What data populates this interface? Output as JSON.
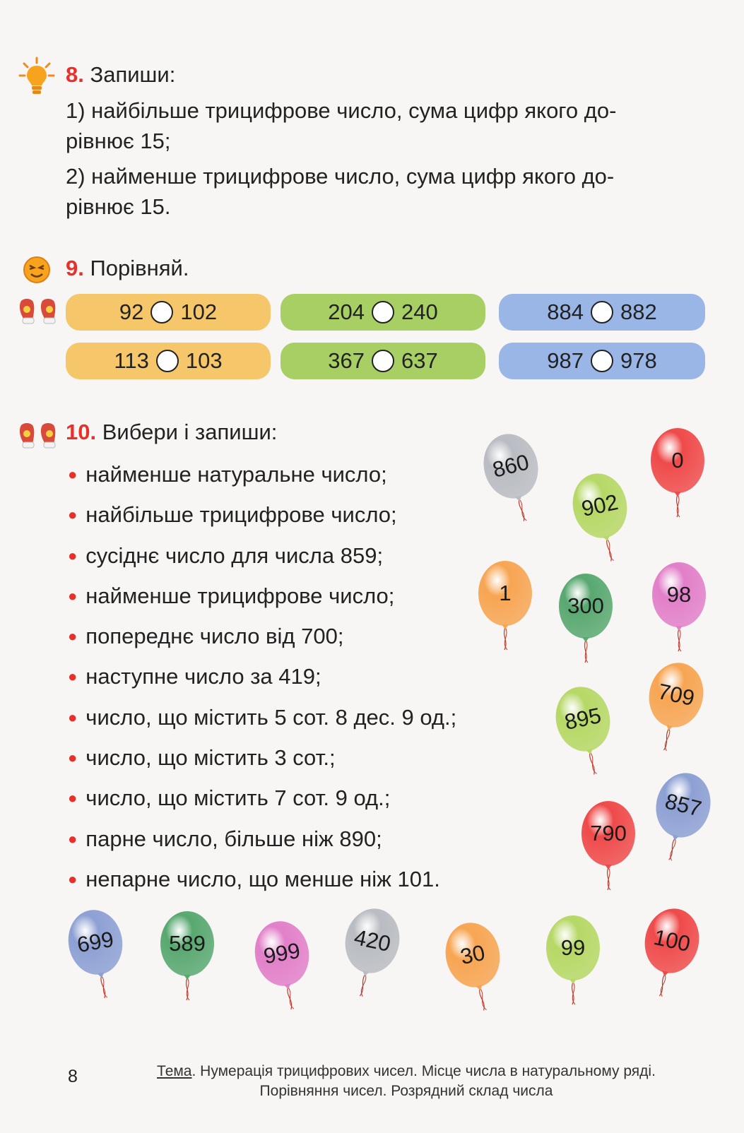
{
  "task8": {
    "number": "8.",
    "title": "Запиши:",
    "item1_line1": "1) найбільше трицифрове число, сума цифр якого до-",
    "item1_line2": "рівнює 15;",
    "item2_line1": "2) найменше трицифрове число, сума цифр якого до-",
    "item2_line2": "рівнює 15."
  },
  "task9": {
    "number": "9.",
    "title": "Порівняй.",
    "pairs": [
      {
        "a": "92",
        "b": "102",
        "color": "#f5c76a"
      },
      {
        "a": "204",
        "b": "240",
        "color": "#a8cf63"
      },
      {
        "a": "884",
        "b": "882",
        "color": "#9ab6e6"
      },
      {
        "a": "113",
        "b": "103",
        "color": "#f5c76a"
      },
      {
        "a": "367",
        "b": "637",
        "color": "#a8cf63"
      },
      {
        "a": "987",
        "b": "978",
        "color": "#9ab6e6"
      }
    ]
  },
  "task10": {
    "number": "10.",
    "title": "Вибери і запиши:",
    "items": [
      "найменше натуральне число;",
      "найбільше трицифрове число;",
      "сусіднє число для числа 859;",
      "найменше трицифрове число;",
      "попереднє число від 700;",
      "наступне число за 419;",
      "число, що містить 5 сот. 8 дес. 9 од.;",
      "число, що містить 3 сот.;",
      "число, що містить 7 сот. 9 од.;",
      "парне число, більше ніж 890;",
      "непарне число, що менше ніж 101."
    ],
    "balloons": [
      {
        "label": "860",
        "color": "#b9bcc2"
      },
      {
        "label": "902",
        "color": "#b6d865"
      },
      {
        "label": "0",
        "color": "#ef4a4a"
      },
      {
        "label": "1",
        "color": "#f7a552"
      },
      {
        "label": "300",
        "color": "#58a870"
      },
      {
        "label": "98",
        "color": "#e27fc9"
      },
      {
        "label": "895",
        "color": "#b6d865"
      },
      {
        "label": "709",
        "color": "#f7a552"
      },
      {
        "label": "857",
        "color": "#8da0d4"
      },
      {
        "label": "790",
        "color": "#ef4a4a"
      },
      {
        "label": "699",
        "color": "#8da0d4"
      },
      {
        "label": "589",
        "color": "#58a870"
      },
      {
        "label": "999",
        "color": "#e27fc9"
      },
      {
        "label": "420",
        "color": "#b9bcc2"
      },
      {
        "label": "30",
        "color": "#f7a552"
      },
      {
        "label": "99",
        "color": "#b6d865"
      },
      {
        "label": "100",
        "color": "#ef4a4a"
      }
    ]
  },
  "footer": {
    "page_number": "8",
    "topic_label": "Тема",
    "topic_line1": ". Нумерація трицифрових чисел. Місце числа в натуральному ряді.",
    "topic_line2": "Порівняння чисел. Розрядний склад числа"
  },
  "icons": {
    "task8": "lightbulb-icon",
    "task9": "smiley-icon",
    "task9_pair": "mittens-icon",
    "task10": "mittens-icon"
  }
}
